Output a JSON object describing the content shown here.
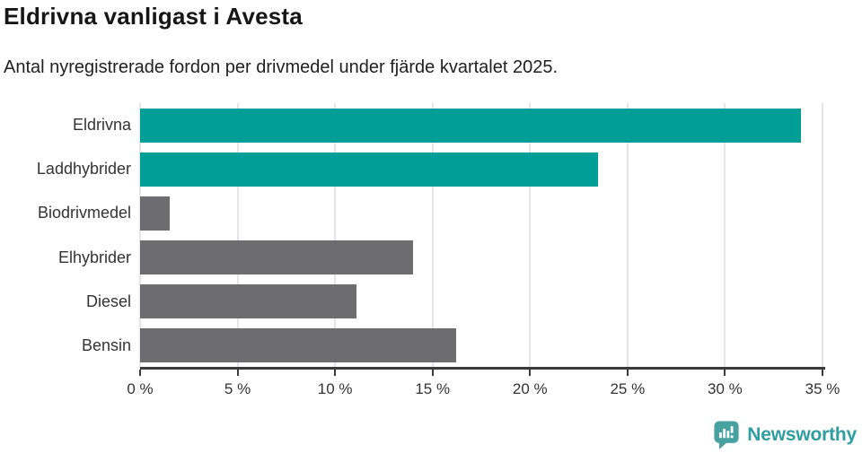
{
  "chart_data": {
    "type": "bar",
    "orientation": "horizontal",
    "title": "Eldrivna vanligast i Avesta",
    "subtitle": "Antal nyregistrerade fordon per drivmedel under fjärde kvartalet 2025.",
    "categories": [
      "Eldrivna",
      "Laddhybrider",
      "Biodrivmedel",
      "Elhybrider",
      "Diesel",
      "Bensin"
    ],
    "values": [
      33.9,
      23.5,
      1.5,
      14.0,
      11.1,
      16.2
    ],
    "unit": "%",
    "xlabel": "",
    "ylabel": "",
    "xlim": [
      0,
      35
    ],
    "x_tick_values": [
      0,
      5,
      10,
      15,
      20,
      25,
      30,
      35
    ],
    "x_ticks": [
      "0 %",
      "5 %",
      "10 %",
      "15 %",
      "20 %",
      "25 %",
      "30 %",
      "35 %"
    ],
    "grid": "vertical",
    "legend": "none",
    "bar_colors": [
      "#009e96",
      "#009e96",
      "#6c6c71",
      "#6c6c71",
      "#6c6c71",
      "#6c6c71"
    ],
    "highlight_color": "#009e96",
    "default_color": "#6c6c71"
  },
  "footer": {
    "brand": "Newsworthy",
    "brand_color": "#2f9ea0",
    "logo_color": "#47a1a1"
  }
}
